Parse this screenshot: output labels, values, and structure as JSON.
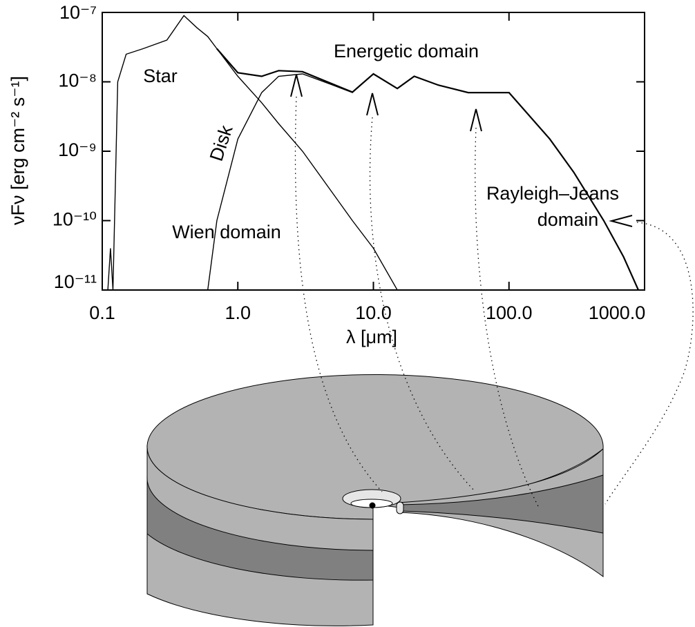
{
  "chart_data": {
    "type": "line",
    "xlabel": "λ [μm]",
    "ylabel": "νFν [erg cm⁻² s⁻¹]",
    "xscale": "log",
    "yscale": "log",
    "xlim": [
      0.1,
      1000
    ],
    "ylim": [
      1e-11,
      1e-07
    ],
    "xticks": [
      0.1,
      {
        "value": 1,
        "label": "1.0"
      },
      {
        "value": 10,
        "label": "10.0"
      },
      {
        "value": 100,
        "label": "100.0"
      },
      {
        "value": 1000,
        "label": "1000.0"
      }
    ],
    "yticks": [
      {
        "value": 1e-11,
        "label": "10⁻¹¹"
      },
      {
        "value": 1e-10,
        "label": "10⁻¹⁰"
      },
      {
        "value": 1e-09,
        "label": "10⁻⁹"
      },
      {
        "value": 1e-08,
        "label": "10⁻⁸"
      },
      {
        "value": 1e-07,
        "label": "10⁻⁷"
      }
    ],
    "x": [
      0.11,
      0.115,
      0.12,
      0.13,
      0.15,
      0.2,
      0.3,
      0.4,
      0.5,
      0.6,
      0.7,
      1,
      1.5,
      2,
      3,
      5,
      7,
      10,
      15,
      20,
      30,
      50,
      70,
      100,
      200,
      300,
      500,
      700,
      900
    ],
    "series": [
      {
        "name": "Star",
        "color": "#000000",
        "values": [
          1e-11,
          4e-11,
          1e-11,
          1e-08,
          2.5e-08,
          3e-08,
          4e-08,
          9e-08,
          6e-08,
          4.5e-08,
          3e-08,
          1.2e-08,
          5e-09,
          2.5e-09,
          1e-09,
          2.5e-10,
          1e-10,
          4e-11,
          1e-11,
          null,
          null,
          null,
          null,
          null,
          null,
          null,
          null,
          null,
          null
        ]
      },
      {
        "name": "Disk",
        "color": "#000000",
        "values": [
          null,
          null,
          null,
          null,
          null,
          null,
          null,
          null,
          null,
          1e-11,
          1e-10,
          1.5e-09,
          7e-09,
          1.2e-08,
          1.3e-08,
          9e-09,
          7e-09,
          1.3e-08,
          8e-09,
          1.2e-08,
          9e-09,
          7e-09,
          7e-09,
          7e-09,
          1.5e-09,
          5e-10,
          1e-10,
          3e-11,
          1e-11
        ]
      },
      {
        "color": "#000000",
        "values": [
          null,
          null,
          null,
          null,
          null,
          null,
          null,
          null,
          null,
          null,
          3e-08,
          1.35e-08,
          1.2e-08,
          1.45e-08,
          1.4e-08,
          9.3e-09,
          7.1e-09,
          1.3e-08,
          8e-09,
          1.2e-08,
          9e-09,
          7e-09,
          7e-09,
          7e-09,
          1.5e-09,
          5e-10,
          1e-10,
          3e-11,
          1e-11
        ]
      }
    ],
    "annotations": [
      {
        "text": "Energetic domain"
      },
      {
        "text": "Wien domain"
      },
      {
        "lines": [
          "Rayleigh–Jeans",
          "domain"
        ]
      }
    ]
  }
}
